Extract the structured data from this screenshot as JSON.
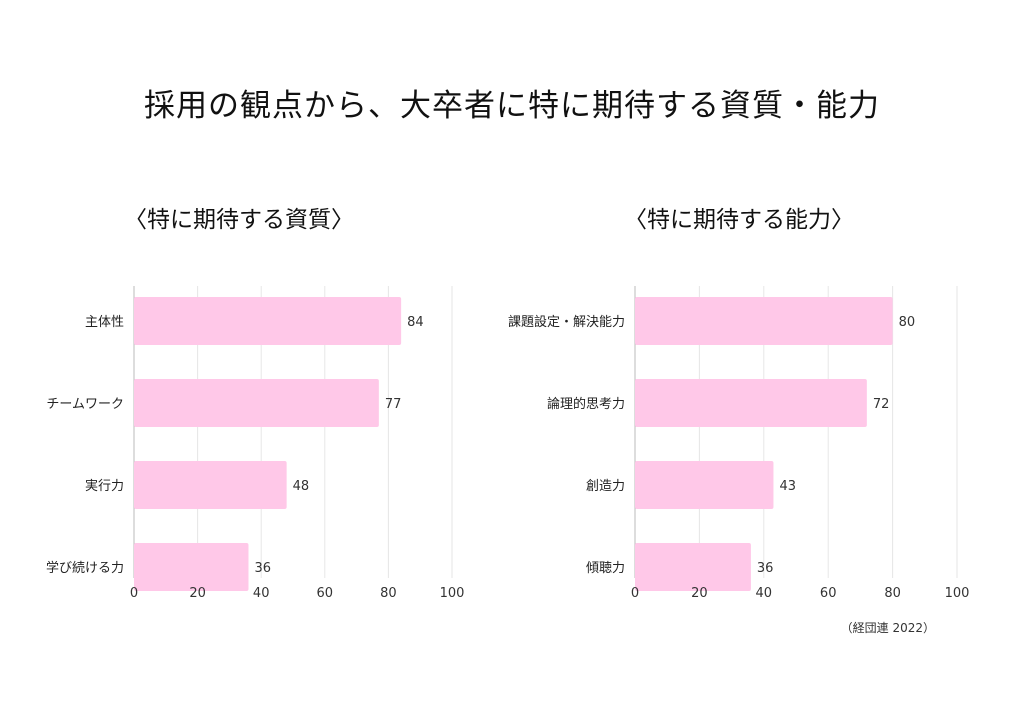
{
  "title": "採用の観点から、大卒者に特に期待する資質・能力",
  "source": "（経団連 2022）",
  "colors": {
    "bar": "#ffc8e8",
    "grid": "#e6e6e6",
    "axis": "#bbbbbb"
  },
  "chart_data": [
    {
      "type": "bar",
      "orientation": "horizontal",
      "title": "〈特に期待する資質〉",
      "categories": [
        "主体性",
        "チームワーク",
        "実行力",
        "学び続ける力"
      ],
      "values": [
        84,
        77,
        48,
        36
      ],
      "xlim": [
        0,
        100
      ],
      "xticks": [
        0,
        20,
        40,
        60,
        80,
        100
      ],
      "grid": true
    },
    {
      "type": "bar",
      "orientation": "horizontal",
      "title": "〈特に期待する能力〉",
      "categories": [
        "課題設定・解決能力",
        "論理的思考力",
        "創造力",
        "傾聴力"
      ],
      "values": [
        80,
        72,
        43,
        36
      ],
      "xlim": [
        0,
        100
      ],
      "xticks": [
        0,
        20,
        40,
        60,
        80,
        100
      ],
      "grid": true
    }
  ]
}
